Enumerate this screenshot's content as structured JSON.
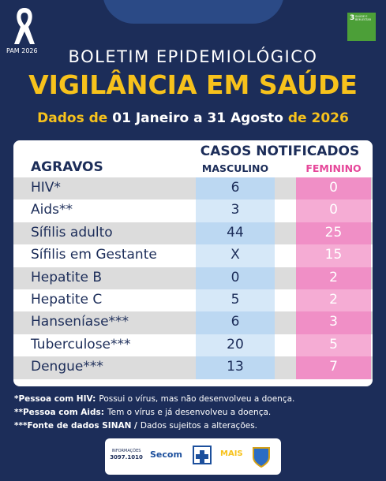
{
  "header": {
    "badge": "PAM 2026",
    "sdg_number": "3",
    "sdg_label": "SAÚDE E BEM-ESTAR",
    "kicker": "BOLETIM EPIDEMIOLÓGICO",
    "title": "VIGILÂNCIA EM SAÚDE",
    "period": [
      "Dados de",
      "01 Janeiro a 31 Agosto",
      "de 2026"
    ]
  },
  "table": {
    "group_header": "CASOS NOTIFICADOS",
    "columns": [
      "AGRAVOS",
      "MASCULINO",
      "FEMININO"
    ],
    "rows": [
      [
        "HIV*",
        6,
        0
      ],
      [
        "Aids**",
        3,
        0
      ],
      [
        "Sífilis adulto",
        44,
        25
      ],
      [
        "Sífilis em Gestante",
        "X",
        15
      ],
      [
        "Hepatite B",
        0,
        2
      ],
      [
        "Hepatite C",
        5,
        2
      ],
      [
        "Hanseníase***",
        6,
        3
      ],
      [
        "Tuberculose***",
        20,
        5
      ],
      [
        "Dengue***",
        13,
        7
      ]
    ]
  },
  "notes": [
    {
      "bold": "*Pessoa com HIV:",
      "text": "Possui o vírus, mas não desenvolveu a doença."
    },
    {
      "bold": "**Pessoa com Aids:",
      "text": "Tem o vírus e já desenvolveu a doença."
    },
    {
      "bold": "***Fonte de dados SINAN /",
      "text": "Dados sujeitos a alterações."
    }
  ],
  "footer": {
    "info_label": "INFORMAÇÕES",
    "phone": "3097.1010",
    "secom": "Secom",
    "progress": "MAIS"
  }
}
